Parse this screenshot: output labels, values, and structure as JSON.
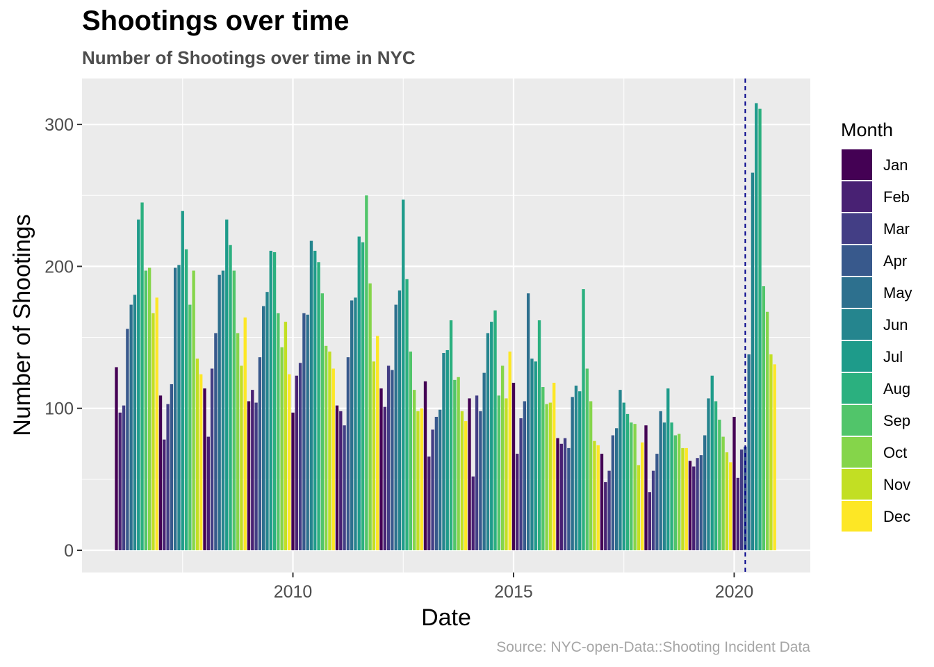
{
  "title": "Shootings over time",
  "subtitle": "Number of Shootings over time in NYC",
  "caption": "Source: NYC-open-Data::Shooting Incident Data",
  "chart_data": {
    "type": "bar",
    "xlabel": "Date",
    "ylabel": "Number of Shootings",
    "x_ticks": [
      2010,
      2015,
      2020
    ],
    "y_ticks": [
      0,
      100,
      200,
      300
    ],
    "ylim": [
      -15,
      332
    ],
    "grid": true,
    "legend_title": "Month",
    "legend_position": "right",
    "months": [
      "Jan",
      "Feb",
      "Mar",
      "Apr",
      "May",
      "Jun",
      "Jul",
      "Aug",
      "Sep",
      "Oct",
      "Nov",
      "Dec"
    ],
    "month_colors": [
      "#440154",
      "#482173",
      "#433E85",
      "#38598C",
      "#2D708E",
      "#25858E",
      "#1E9B8A",
      "#2BB07F",
      "#51C56A",
      "#85D54A",
      "#C2DF23",
      "#FDE725"
    ],
    "reference_line": {
      "date": "2020-04",
      "style": "dashed",
      "color": "#00008B"
    },
    "series": [
      {
        "year": 2006,
        "values": [
          129,
          97,
          102,
          156,
          173,
          180,
          233,
          245,
          197,
          199,
          167,
          178
        ]
      },
      {
        "year": 2007,
        "values": [
          109,
          78,
          103,
          117,
          199,
          201,
          239,
          212,
          173,
          197,
          135,
          124
        ]
      },
      {
        "year": 2008,
        "values": [
          114,
          80,
          128,
          153,
          194,
          197,
          233,
          215,
          197,
          153,
          130,
          164
        ]
      },
      {
        "year": 2009,
        "values": [
          105,
          113,
          104,
          136,
          172,
          182,
          211,
          210,
          167,
          143,
          161,
          124
        ]
      },
      {
        "year": 2010,
        "values": [
          97,
          123,
          132,
          167,
          166,
          218,
          211,
          203,
          181,
          144,
          140,
          128
        ]
      },
      {
        "year": 2011,
        "values": [
          102,
          98,
          88,
          136,
          176,
          178,
          221,
          217,
          250,
          188,
          133,
          151
        ]
      },
      {
        "year": 2012,
        "values": [
          114,
          101,
          130,
          127,
          173,
          183,
          247,
          191,
          140,
          113,
          98,
          100
        ]
      },
      {
        "year": 2013,
        "values": [
          119,
          66,
          85,
          94,
          99,
          139,
          141,
          162,
          120,
          122,
          98,
          91
        ]
      },
      {
        "year": 2014,
        "values": [
          107,
          52,
          109,
          98,
          125,
          153,
          161,
          169,
          109,
          130,
          107,
          140
        ]
      },
      {
        "year": 2015,
        "values": [
          118,
          68,
          93,
          105,
          181,
          135,
          133,
          162,
          115,
          103,
          104,
          118
        ]
      },
      {
        "year": 2016,
        "values": [
          79,
          75,
          79,
          72,
          108,
          116,
          112,
          184,
          128,
          105,
          77,
          74
        ]
      },
      {
        "year": 2017,
        "values": [
          68,
          48,
          56,
          81,
          86,
          113,
          104,
          96,
          90,
          89,
          60,
          76
        ]
      },
      {
        "year": 2018,
        "values": [
          88,
          41,
          56,
          68,
          98,
          90,
          114,
          90,
          81,
          82,
          72,
          72
        ]
      },
      {
        "year": 2019,
        "values": [
          63,
          59,
          65,
          67,
          81,
          107,
          123,
          105,
          92,
          80,
          69,
          62
        ]
      },
      {
        "year": 2020,
        "values": [
          94,
          51,
          71,
          73,
          138,
          266,
          315,
          311,
          186,
          168,
          138,
          131
        ]
      }
    ]
  }
}
